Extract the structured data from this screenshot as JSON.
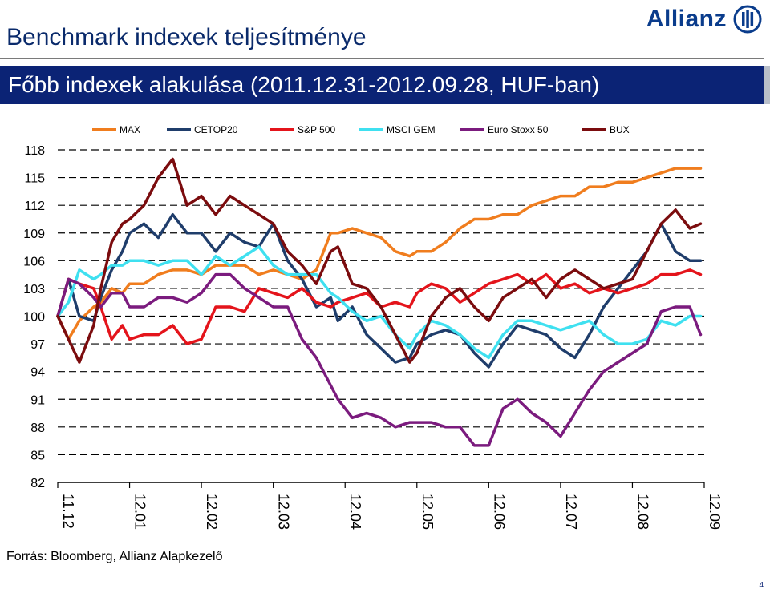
{
  "header": {
    "title": "Benchmark indexek teljesítménye",
    "logo_text": "Allianz",
    "logo_icon": "allianz-eagle-icon"
  },
  "banner": {
    "text": "Főbb indexek alakulása (2011.12.31-2012.09.28,  HUF-ban)"
  },
  "footer": {
    "source": "Forrás: Bloomberg, Allianz Alapkezelő",
    "page_number": "4"
  },
  "chart_data": {
    "type": "line",
    "title": "",
    "xlabel": "",
    "ylabel": "",
    "ylim": [
      82,
      118
    ],
    "yticks": [
      118,
      115,
      112,
      109,
      106,
      103,
      100,
      97,
      94,
      91,
      88,
      85,
      82
    ],
    "x_labels": [
      "11.12",
      "12.01",
      "12.02",
      "12.03",
      "12.04",
      "12.05",
      "12.06",
      "12.07",
      "12.08",
      "12.09"
    ],
    "grid": "horizontal dashed",
    "legend_position": "top",
    "x": [
      0,
      0.15,
      0.3,
      0.5,
      0.6,
      0.75,
      0.9,
      1.0,
      1.2,
      1.4,
      1.6,
      1.8,
      2.0,
      2.2,
      2.4,
      2.6,
      2.8,
      3.0,
      3.2,
      3.4,
      3.6,
      3.8,
      3.9,
      4.1,
      4.3,
      4.5,
      4.7,
      4.9,
      5.0,
      5.2,
      5.4,
      5.6,
      5.8,
      6.0,
      6.2,
      6.4,
      6.6,
      6.8,
      7.0,
      7.2,
      7.4,
      7.6,
      7.8,
      8.0,
      8.2,
      8.4,
      8.6,
      8.8,
      8.95
    ],
    "series": [
      {
        "name": "MAX",
        "color": "#f07d1e",
        "values": [
          100,
          97.5,
          99.5,
          101,
          101.5,
          103,
          102.5,
          103.5,
          103.5,
          104.5,
          105,
          105,
          104.5,
          105.5,
          105.5,
          105.5,
          104.5,
          105,
          104.5,
          104,
          105,
          109,
          109,
          109.5,
          109,
          108.5,
          107,
          106.5,
          107,
          107,
          108,
          109.5,
          110.5,
          110.5,
          111,
          111,
          112,
          112.5,
          113,
          113,
          114,
          114,
          114.5,
          114.5,
          115,
          115.5,
          116,
          116,
          116
        ]
      },
      {
        "name": "CETOP20",
        "color": "#1f3d6b",
        "values": [
          100,
          104,
          100,
          99.5,
          102,
          105,
          107,
          109,
          110,
          108.5,
          111,
          109,
          109,
          107,
          109,
          108,
          107.5,
          110,
          106,
          104,
          101,
          102,
          99.5,
          101,
          98,
          96.5,
          95,
          95.5,
          97,
          98,
          98.5,
          98,
          96,
          94.5,
          97,
          99,
          98.5,
          98,
          96.5,
          95.5,
          98,
          101,
          103,
          105,
          107,
          110,
          107,
          106,
          106
        ]
      },
      {
        "name": "S&P 500",
        "color": "#e4141b",
        "values": [
          100,
          104,
          103.5,
          103,
          101,
          97.5,
          99,
          97.5,
          98,
          98,
          99,
          97,
          97.5,
          101,
          101,
          100.5,
          103,
          102.5,
          102,
          103,
          101.5,
          101,
          101.5,
          102,
          102.5,
          101,
          101.5,
          101,
          102.5,
          103.5,
          103,
          101.5,
          102.5,
          103.5,
          104,
          104.5,
          103.5,
          104.5,
          103,
          103.5,
          102.5,
          103,
          102.5,
          103,
          103.5,
          104.5,
          104.5,
          105,
          104.5
        ]
      },
      {
        "name": "MSCI GEM",
        "color": "#3fe0f0",
        "values": [
          100,
          101.5,
          105,
          104,
          104.5,
          105.5,
          105.5,
          106,
          106,
          105.5,
          106,
          106,
          104.5,
          106.5,
          105.5,
          106.5,
          107.5,
          105.5,
          104.5,
          104.5,
          104.5,
          102.5,
          102,
          100.5,
          99.5,
          100,
          98,
          96.5,
          98,
          99.5,
          99,
          98,
          96.5,
          95.5,
          98,
          99.5,
          99.5,
          99,
          98.5,
          99,
          99.5,
          98,
          97,
          97,
          97.5,
          99.5,
          99,
          100,
          100
        ]
      },
      {
        "name": "Euro Stoxx 50",
        "color": "#7b1b7e",
        "values": [
          100,
          104,
          103.5,
          102,
          101,
          102.5,
          102.5,
          101,
          101,
          102,
          102,
          101.5,
          102.5,
          104.5,
          104.5,
          103,
          102,
          101,
          101,
          97.5,
          95.5,
          92.5,
          91,
          89,
          89.5,
          89,
          88,
          88.5,
          88.5,
          88.5,
          88,
          88,
          86,
          86,
          90,
          91,
          89.5,
          88.5,
          87,
          89.5,
          92,
          94,
          95,
          96,
          97,
          100.5,
          101,
          101,
          98
        ]
      },
      {
        "name": "BUX",
        "color": "#7b0c0e",
        "values": [
          100,
          97.5,
          95,
          99,
          103,
          108,
          110,
          110.5,
          112,
          115,
          117,
          112,
          113,
          111,
          113,
          112,
          111,
          110,
          107,
          105.5,
          103.5,
          107,
          107.5,
          103.5,
          103,
          101,
          98,
          95,
          96,
          100,
          102,
          103,
          101,
          99.5,
          102,
          103,
          104,
          102,
          104,
          105,
          104,
          103,
          103.5,
          104,
          107,
          110,
          111.5,
          109.5,
          110
        ]
      }
    ]
  }
}
